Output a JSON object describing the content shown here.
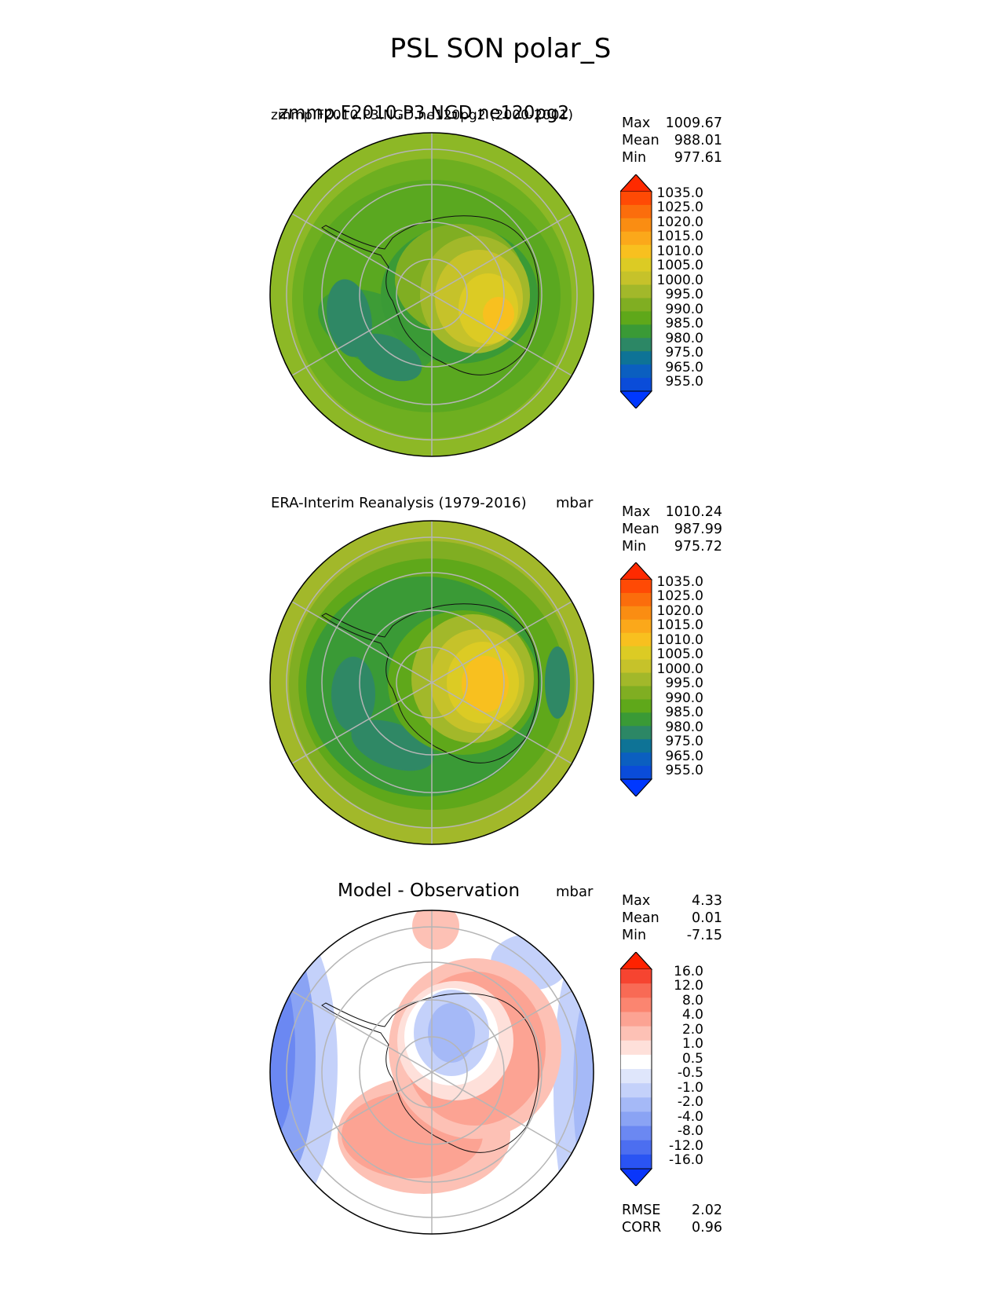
{
  "figure": {
    "title": "PSL SON polar_S"
  },
  "chart_data": [
    {
      "type": "heatmap",
      "projection": "south-polar-stereographic",
      "variable": "PSL",
      "season": "SON",
      "region": "polar_S",
      "title": "zmmp.F2010.P3.NGD.ne120pg2",
      "title_overlay": "zmmp.F2010.P3.NGD.ne120pg2 (2000-2001)",
      "units": "",
      "stats": [
        {
          "label": "Max",
          "value": "1009.67"
        },
        {
          "label": "Mean",
          "value": "988.01"
        },
        {
          "label": "Min",
          "value": "977.61"
        }
      ],
      "colorbar": {
        "levels": [
          "1035.0",
          "1025.0",
          "1020.0",
          "1015.0",
          "1010.0",
          "1005.0",
          "1000.0",
          "995.0",
          "990.0",
          "985.0",
          "980.0",
          "975.0",
          "965.0",
          "955.0"
        ],
        "colors": [
          "#ff2a00",
          "#ff4a05",
          "#fb6d0c",
          "#fa8d12",
          "#fba81a",
          "#f8c01f",
          "#dccb24",
          "#c6c22a",
          "#a2b82a",
          "#80ae22",
          "#5fa81a",
          "#3a9a36",
          "#2c8765",
          "#0e7396",
          "#0b5fc0",
          "#0a4cd9",
          "#0038ff"
        ],
        "extend": "both"
      }
    },
    {
      "type": "heatmap",
      "projection": "south-polar-stereographic",
      "title": "ERA-Interim Reanalysis (1979-2016)",
      "units": "mbar",
      "stats": [
        {
          "label": "Max",
          "value": "1010.24"
        },
        {
          "label": "Mean",
          "value": "987.99"
        },
        {
          "label": "Min",
          "value": "975.72"
        }
      ],
      "colorbar": {
        "levels": [
          "1035.0",
          "1025.0",
          "1020.0",
          "1015.0",
          "1010.0",
          "1005.0",
          "1000.0",
          "995.0",
          "990.0",
          "985.0",
          "980.0",
          "975.0",
          "965.0",
          "955.0"
        ],
        "colors": [
          "#ff2a00",
          "#ff4a05",
          "#fb6d0c",
          "#fa8d12",
          "#fba81a",
          "#f8c01f",
          "#dccb24",
          "#c6c22a",
          "#a2b82a",
          "#80ae22",
          "#5fa81a",
          "#3a9a36",
          "#2c8765",
          "#0e7396",
          "#0b5fc0",
          "#0a4cd9",
          "#0038ff"
        ],
        "extend": "both"
      }
    },
    {
      "type": "heatmap",
      "projection": "south-polar-stereographic",
      "title": "Model - Observation",
      "units": "mbar",
      "stats": [
        {
          "label": "Max",
          "value": "4.33"
        },
        {
          "label": "Mean",
          "value": "0.01"
        },
        {
          "label": "Min",
          "value": "-7.15"
        }
      ],
      "metrics": [
        {
          "label": "RMSE",
          "value": "2.02"
        },
        {
          "label": "CORR",
          "value": "0.96"
        }
      ],
      "colorbar": {
        "levels": [
          "16.0",
          "12.0",
          "8.0",
          "4.0",
          "2.0",
          "1.0",
          "0.5",
          "-0.5",
          "-1.0",
          "-2.0",
          "-4.0",
          "-8.0",
          "-12.0",
          "-16.0"
        ],
        "colors": [
          "#ff2200",
          "#f64430",
          "#f86a55",
          "#fb8570",
          "#fca393",
          "#fdc1b5",
          "#fee0da",
          "#ffffff",
          "#dfe6fb",
          "#c4d1fa",
          "#a5b9f7",
          "#8aa3f4",
          "#6b88f2",
          "#4c6ef0",
          "#2a54f3",
          "#0a36fb"
        ],
        "extend": "both"
      }
    }
  ]
}
